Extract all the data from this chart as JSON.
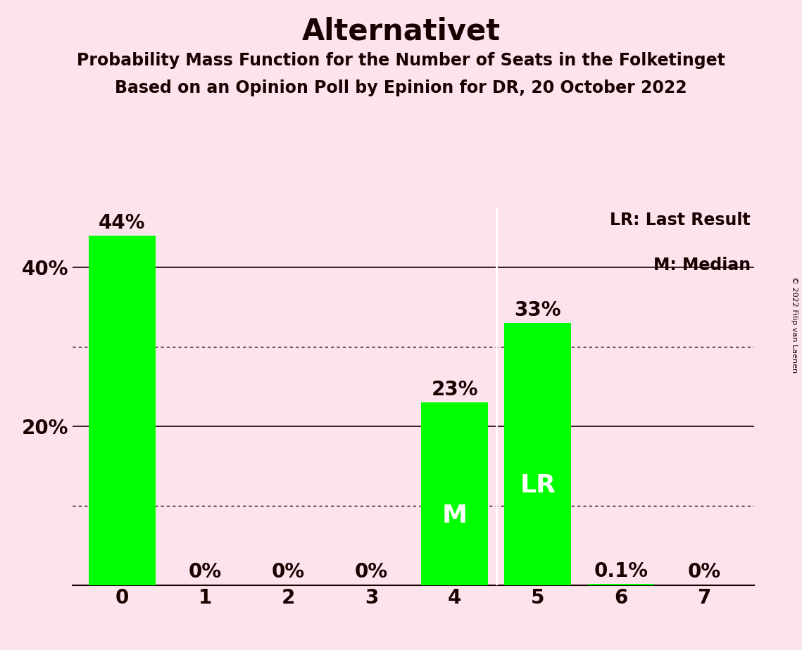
{
  "title": "Alternativet",
  "subtitle1": "Probability Mass Function for the Number of Seats in the Folketinget",
  "subtitle2": "Based on an Opinion Poll by Epinion for DR, 20 October 2022",
  "copyright": "© 2022 Filip van Laenen",
  "categories": [
    0,
    1,
    2,
    3,
    4,
    5,
    6,
    7
  ],
  "values": [
    0.44,
    0.0,
    0.0,
    0.0,
    0.23,
    0.33,
    0.001,
    0.0
  ],
  "bar_labels": [
    "44%",
    "0%",
    "0%",
    "0%",
    "23%",
    "33%",
    "0.1%",
    "0%"
  ],
  "bar_color": "#00ff00",
  "background_color": "#fce4ec",
  "text_color": "#1a0000",
  "bar_inner_labels": {
    "4": "M",
    "5": "LR"
  },
  "legend_line1": "LR: Last Result",
  "legend_line2": "M: Median",
  "ytick_positions": [
    0.2,
    0.4
  ],
  "ytick_labels": [
    "20%",
    "40%"
  ],
  "solid_gridlines": [
    0.2,
    0.4
  ],
  "dotted_gridlines": [
    0.1,
    0.3
  ],
  "ylim": [
    0,
    0.475
  ],
  "title_fontsize": 30,
  "subtitle_fontsize": 17,
  "label_fontsize": 20,
  "axis_fontsize": 20,
  "inner_label_fontsize": 26,
  "legend_fontsize": 17
}
